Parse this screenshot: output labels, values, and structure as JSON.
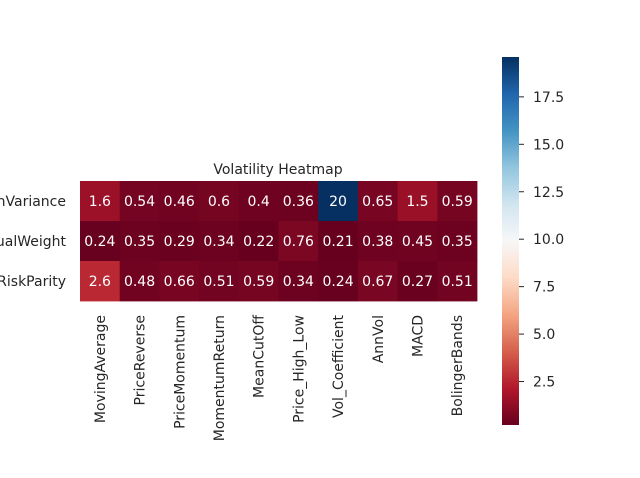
{
  "chart_data": {
    "type": "heatmap",
    "title": "Volatility Heatmap",
    "rows": [
      "nVariance",
      "ualWeight",
      "RiskParity"
    ],
    "columns": [
      "MovingAverage",
      "PriceReverse",
      "PriceMomentum",
      "MomentumReturn",
      "MeanCutOff",
      "Price_High_Low",
      "Vol_Coefficient",
      "AnnVol",
      "MACD",
      "BolingerBands"
    ],
    "values": [
      [
        1.6,
        0.54,
        0.46,
        0.6,
        0.4,
        0.36,
        20,
        0.65,
        1.5,
        0.59
      ],
      [
        0.24,
        0.35,
        0.29,
        0.34,
        0.22,
        0.76,
        0.21,
        0.38,
        0.45,
        0.35
      ],
      [
        2.6,
        0.48,
        0.66,
        0.51,
        0.59,
        0.34,
        0.24,
        0.67,
        0.27,
        0.51
      ]
    ],
    "labels": [
      [
        "1.6",
        "0.54",
        "0.46",
        "0.6",
        "0.4",
        "0.36",
        "20",
        "0.65",
        "1.5",
        "0.59"
      ],
      [
        "0.24",
        "0.35",
        "0.29",
        "0.34",
        "0.22",
        "0.76",
        "0.21",
        "0.38",
        "0.45",
        "0.35"
      ],
      [
        "2.6",
        "0.48",
        "0.66",
        "0.51",
        "0.59",
        "0.34",
        "0.24",
        "0.67",
        "0.27",
        "0.51"
      ]
    ],
    "colormap": "RdBu",
    "colorbar": {
      "range": [
        0.21,
        19.6
      ],
      "ticks": [
        2.5,
        5.0,
        7.5,
        10.0,
        12.5,
        15.0,
        17.5
      ],
      "tick_labels": [
        "2.5",
        "5.0",
        "7.5",
        "10.0",
        "12.5",
        "15.0",
        "17.5"
      ]
    }
  }
}
